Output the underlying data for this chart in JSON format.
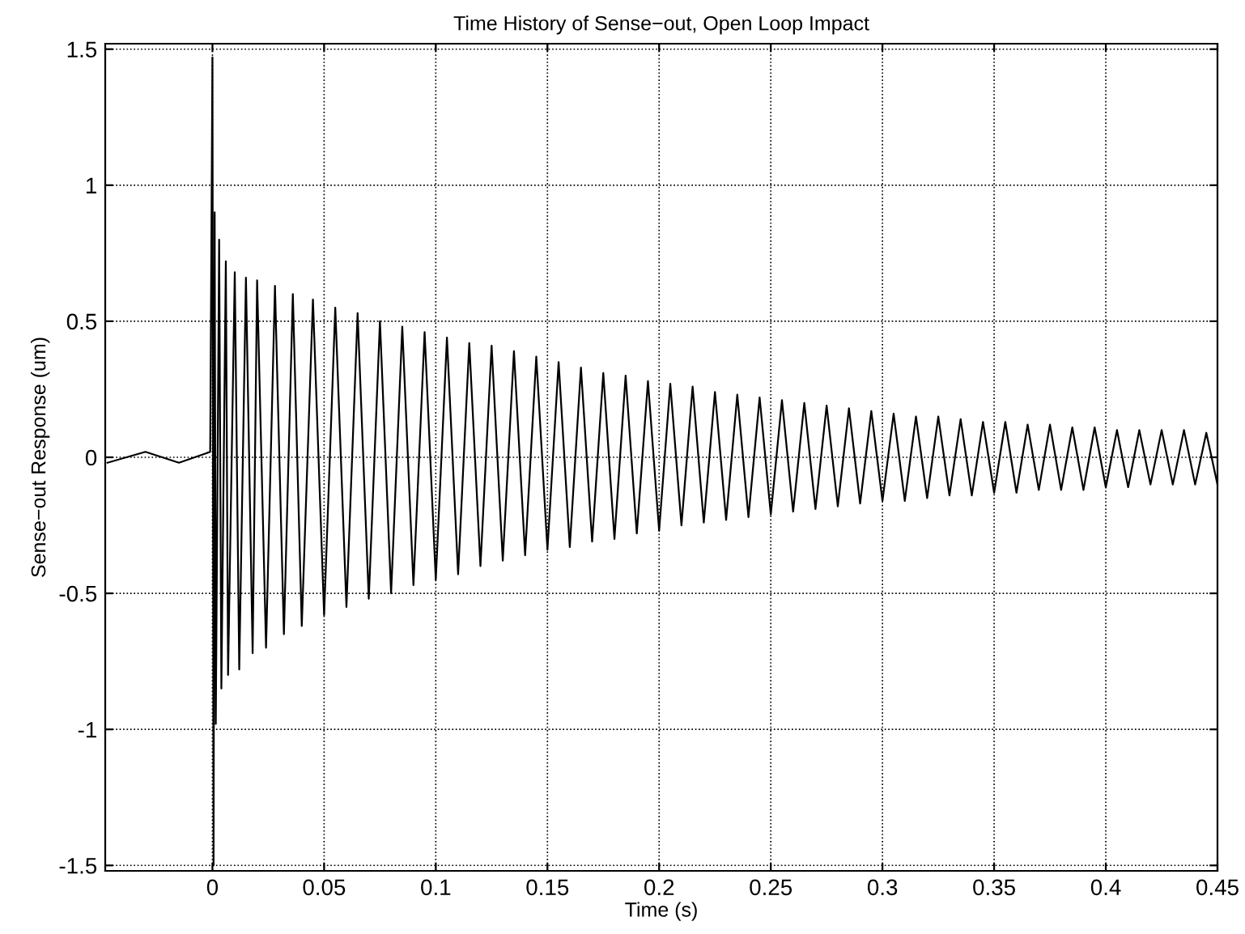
{
  "chart_data": {
    "type": "line",
    "title": "Time History of Sense−out, Open Loop Impact",
    "xlabel": "Time (s)",
    "ylabel": "Sense−out Response (um)",
    "x": [
      -0.047,
      -0.03,
      -0.015,
      -0.001,
      0,
      0.0005,
      0.001,
      0.0015,
      0.003,
      0.004,
      0.006,
      0.007,
      0.01,
      0.012,
      0.015,
      0.018,
      0.02,
      0.024,
      0.028,
      0.032,
      0.036,
      0.04,
      0.045,
      0.05,
      0.055,
      0.06,
      0.065,
      0.07,
      0.075,
      0.08,
      0.085,
      0.09,
      0.095,
      0.1,
      0.105,
      0.11,
      0.115,
      0.12,
      0.125,
      0.13,
      0.135,
      0.14,
      0.145,
      0.15,
      0.155,
      0.16,
      0.165,
      0.17,
      0.175,
      0.18,
      0.185,
      0.19,
      0.195,
      0.2,
      0.205,
      0.21,
      0.215,
      0.22,
      0.225,
      0.23,
      0.235,
      0.24,
      0.245,
      0.25,
      0.255,
      0.26,
      0.265,
      0.27,
      0.275,
      0.28,
      0.285,
      0.29,
      0.295,
      0.3,
      0.305,
      0.31,
      0.315,
      0.32,
      0.325,
      0.33,
      0.335,
      0.34,
      0.345,
      0.35,
      0.355,
      0.36,
      0.365,
      0.37,
      0.375,
      0.38,
      0.385,
      0.39,
      0.395,
      0.4,
      0.405,
      0.41,
      0.415,
      0.42,
      0.425,
      0.43,
      0.435,
      0.44,
      0.445,
      0.45
    ],
    "series": [
      {
        "color": "#000000",
        "values": [
          -0.02,
          0.02,
          -0.02,
          0.02,
          1.47,
          -1.5,
          0.9,
          -0.98,
          0.8,
          -0.85,
          0.72,
          -0.8,
          0.68,
          -0.78,
          0.66,
          -0.72,
          0.65,
          -0.7,
          0.63,
          -0.65,
          0.6,
          -0.62,
          0.58,
          -0.58,
          0.55,
          -0.55,
          0.53,
          -0.52,
          0.5,
          -0.5,
          0.48,
          -0.47,
          0.46,
          -0.45,
          0.44,
          -0.43,
          0.42,
          -0.4,
          0.41,
          -0.38,
          0.39,
          -0.36,
          0.37,
          -0.34,
          0.35,
          -0.33,
          0.33,
          -0.31,
          0.31,
          -0.3,
          0.3,
          -0.28,
          0.28,
          -0.27,
          0.27,
          -0.25,
          0.26,
          -0.24,
          0.24,
          -0.23,
          0.23,
          -0.22,
          0.22,
          -0.21,
          0.21,
          -0.2,
          0.2,
          -0.19,
          0.19,
          -0.18,
          0.18,
          -0.17,
          0.17,
          -0.16,
          0.16,
          -0.16,
          0.15,
          -0.15,
          0.15,
          -0.14,
          0.14,
          -0.14,
          0.13,
          -0.13,
          0.13,
          -0.13,
          0.12,
          -0.12,
          0.12,
          -0.12,
          0.11,
          -0.12,
          0.11,
          -0.11,
          0.1,
          -0.11,
          0.1,
          -0.1,
          0.1,
          -0.1,
          0.1,
          -0.1,
          0.09,
          -0.1
        ]
      }
    ],
    "xlim": [
      -0.048,
      0.45
    ],
    "xticks": [
      0,
      0.05,
      0.1,
      0.15,
      0.2,
      0.25,
      0.3,
      0.35,
      0.4,
      0.45
    ],
    "ylim": [
      -1.52,
      1.52
    ],
    "yticks": [
      -1.5,
      -1,
      -0.5,
      0,
      0.5,
      1,
      1.5
    ],
    "grid": true,
    "line_style": "solid",
    "marker": "none"
  }
}
